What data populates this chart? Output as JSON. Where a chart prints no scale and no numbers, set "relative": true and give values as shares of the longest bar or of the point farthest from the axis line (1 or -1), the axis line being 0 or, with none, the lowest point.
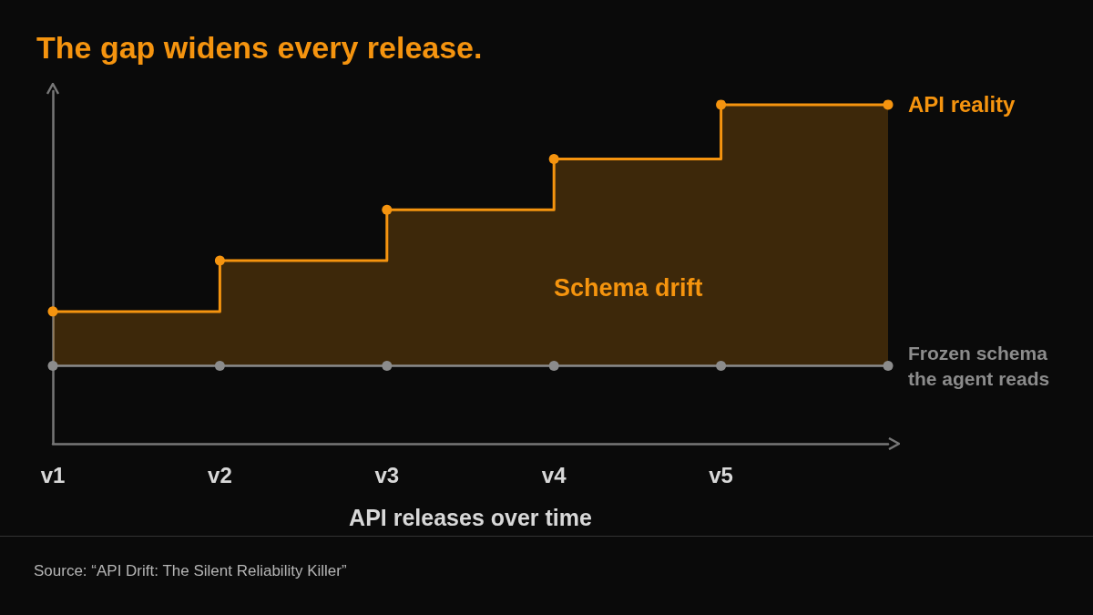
{
  "chart_data": {
    "type": "step",
    "title": "The gap widens every release.",
    "xlabel": "API releases over time",
    "relative": true,
    "marker": "circle",
    "legend": false,
    "categories": [
      "v1",
      "v2",
      "v3",
      "v4",
      "v5",
      null
    ],
    "series": [
      {
        "name": "API reality",
        "color": "#f5940f",
        "values": [
          0.39,
          0.54,
          0.69,
          0.84,
          1.0,
          1.0
        ],
        "lower": [
          0.23,
          0.23,
          0.23,
          0.23,
          0.23,
          0.23
        ],
        "upper": [
          0.39,
          0.54,
          0.69,
          0.84,
          1.0,
          1.0
        ]
      },
      {
        "name": "Frozen schema\nthe agent reads",
        "type": "line",
        "color": "#8c8c8c",
        "values": [
          0.23,
          0.23,
          0.23,
          0.23,
          0.23,
          0.23
        ]
      }
    ],
    "annotations": [
      "Schema drift",
      "Source: “API Drift: The Silent Reliability Killer”"
    ]
  }
}
